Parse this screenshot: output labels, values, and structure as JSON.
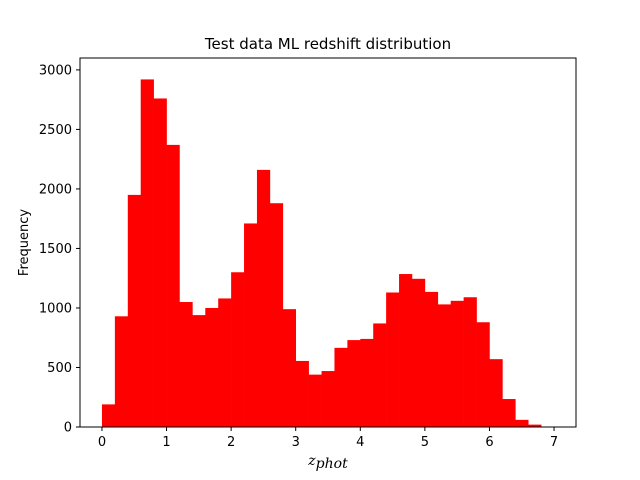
{
  "chart_data": {
    "type": "bar",
    "title": "Test data ML redshift distribution",
    "xlabel_main": "z",
    "xlabel_sub": "phot",
    "ylabel": "Frequency",
    "xlim": [
      -0.34,
      7.34
    ],
    "ylim": [
      0,
      3100
    ],
    "xticks": [
      0,
      1,
      2,
      3,
      4,
      5,
      6,
      7
    ],
    "yticks": [
      0,
      500,
      1000,
      1500,
      2000,
      2500,
      3000
    ],
    "grid": false,
    "bar_color": "#ff0000",
    "bin_start": 0.0,
    "bin_width": 0.2,
    "values": [
      190,
      930,
      1950,
      2920,
      2760,
      2370,
      1050,
      940,
      1000,
      1080,
      1300,
      1710,
      2160,
      1880,
      990,
      555,
      440,
      470,
      665,
      730,
      740,
      870,
      1130,
      1285,
      1245,
      1135,
      1030,
      1060,
      1090,
      880,
      570,
      235,
      60,
      20,
      0
    ]
  }
}
